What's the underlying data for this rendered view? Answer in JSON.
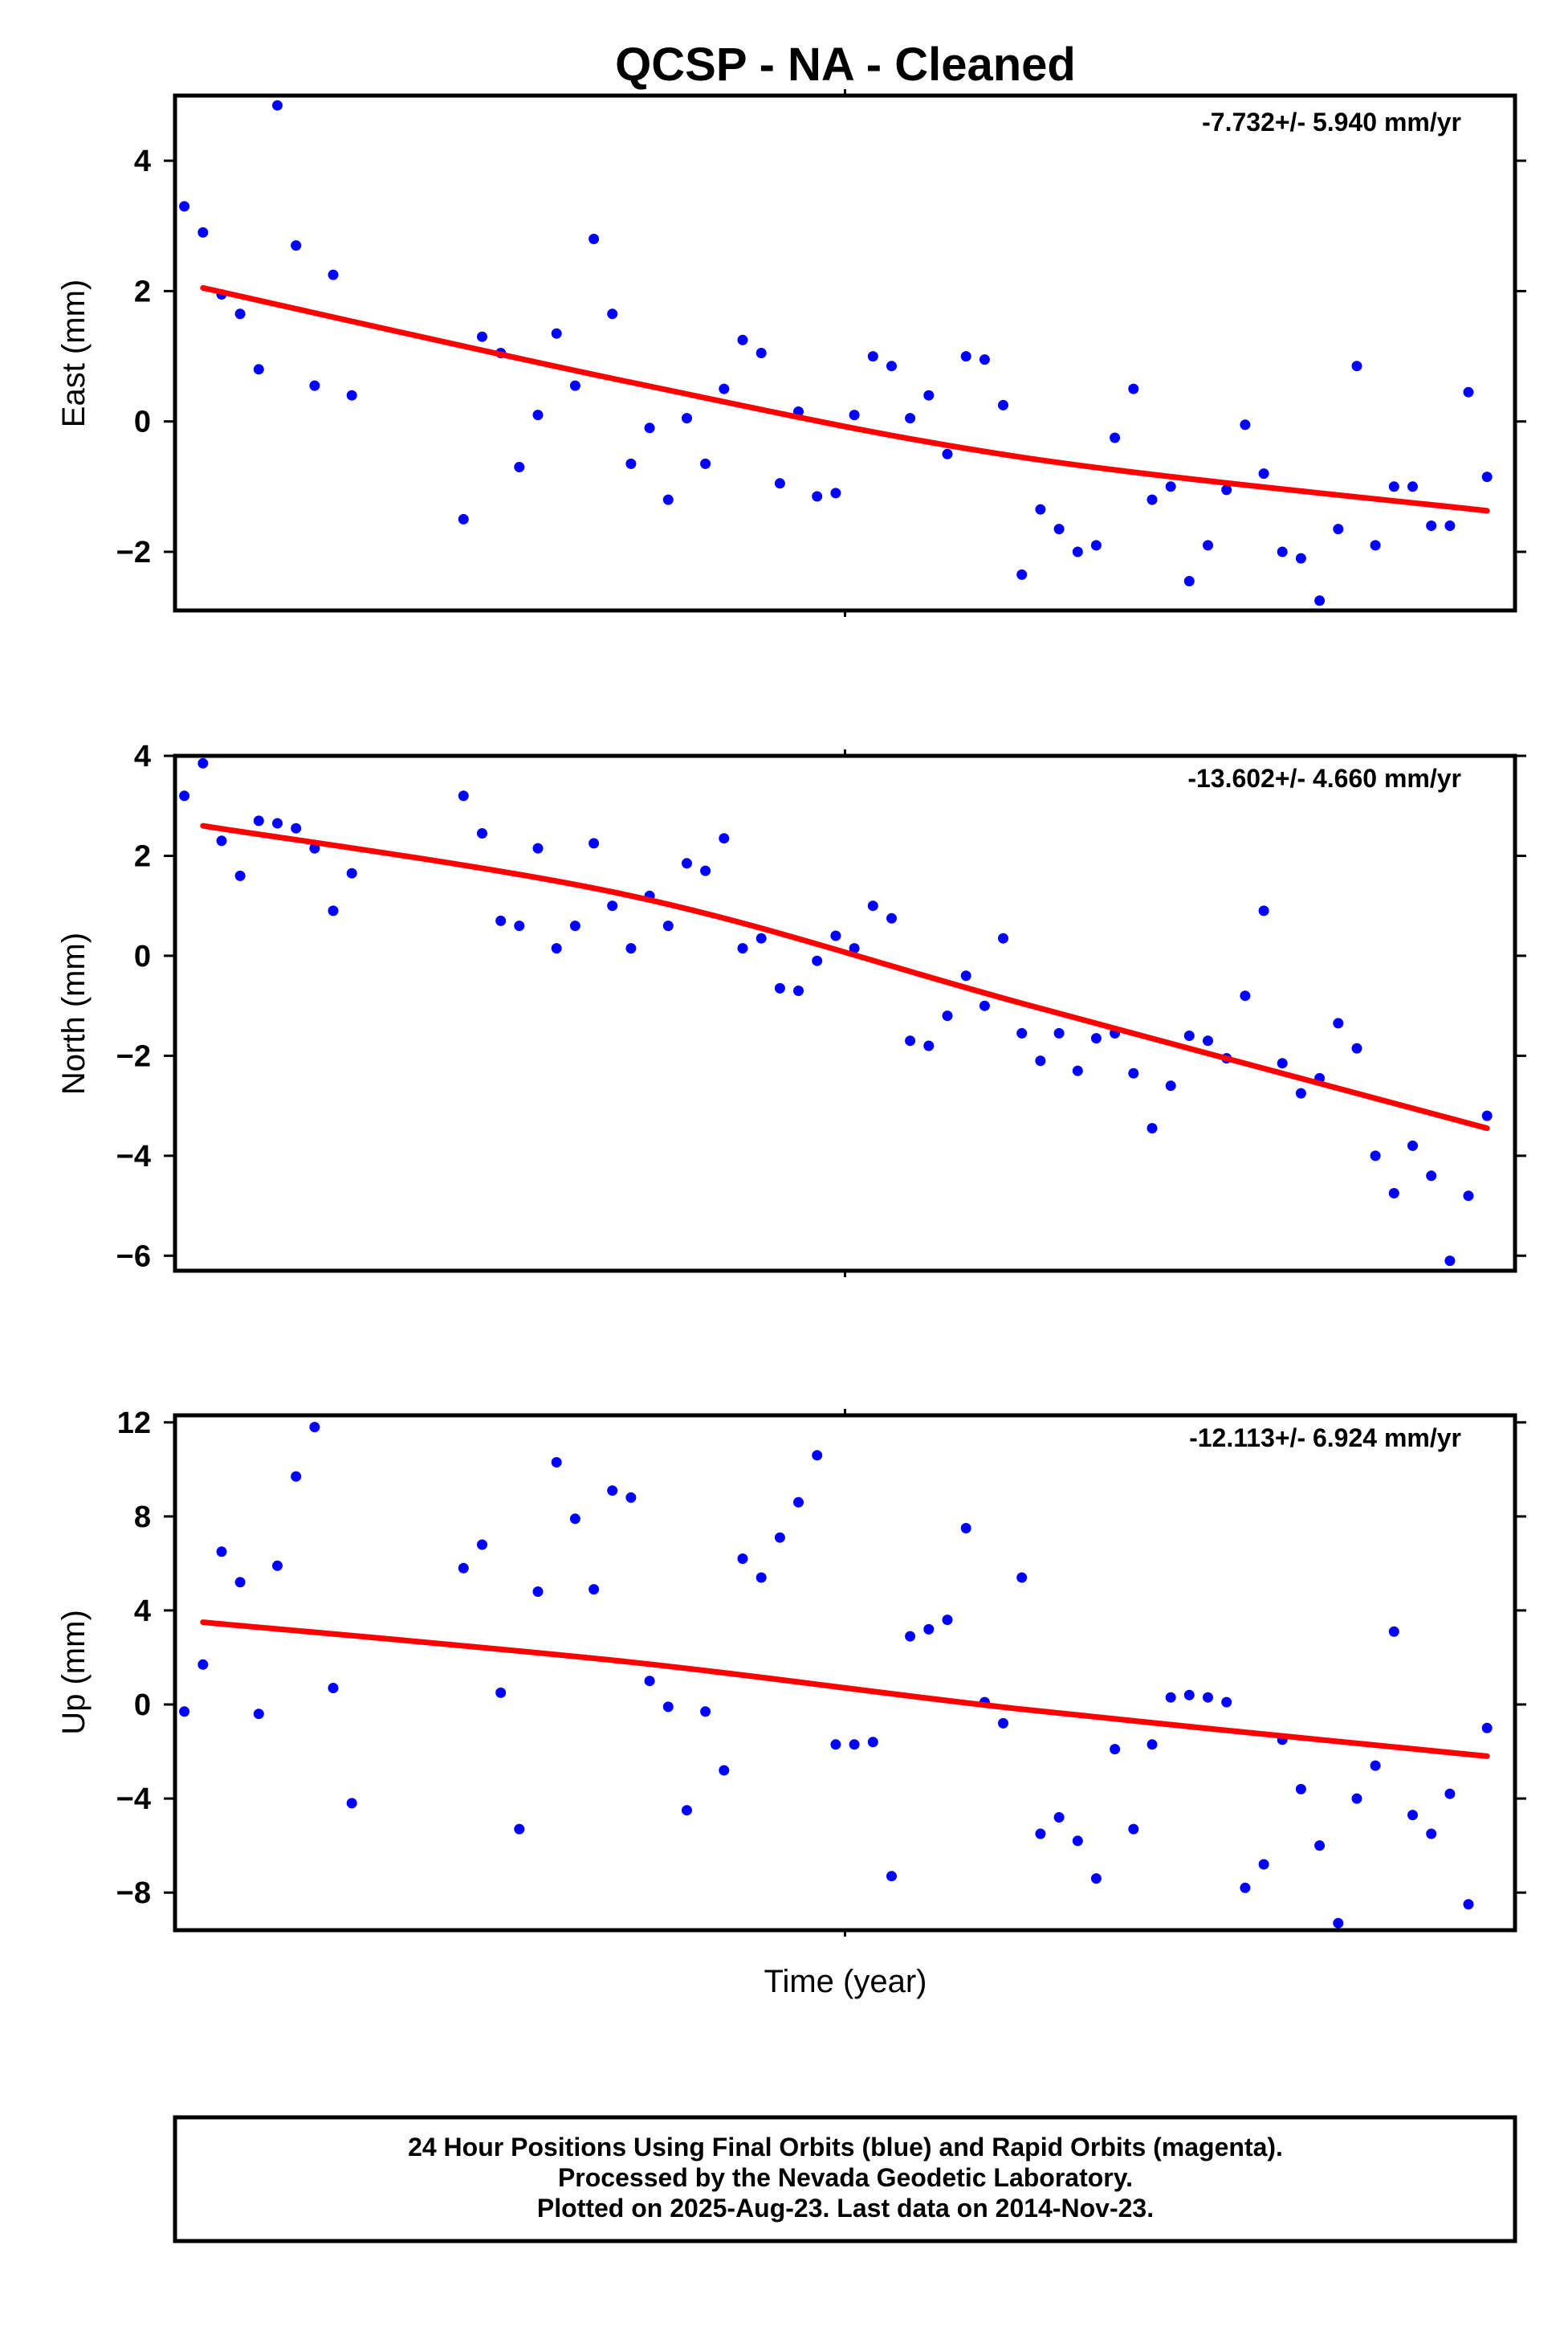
{
  "title": "QCSP  - NA - Cleaned",
  "footer": {
    "line1": "24 Hour Positions Using Final Orbits (blue) and Rapid Orbits (magenta).",
    "line2": "Processed by the Nevada Geodetic Laboratory.",
    "line3": "Plotted on 2025-Aug-23. Last data on 2014-Nov-23."
  },
  "colors": {
    "points": "#0000ff",
    "fit": "#ff0000",
    "frame": "#000000"
  },
  "chart_data": [
    {
      "type": "scatter",
      "ylabel": "East (mm)",
      "xlabel": "",
      "rate_label": "-7.732+/- 5.940 mm/yr",
      "ylim": [
        -2.9,
        5.0
      ],
      "yticks": [
        -2,
        0,
        2,
        4
      ],
      "xlim": [
        0,
        72
      ],
      "series": [
        {
          "values": [
            [
              0.5,
              3.3
            ],
            [
              1.5,
              2.9
            ],
            [
              2.5,
              1.95
            ],
            [
              3.5,
              1.65
            ],
            [
              4.5,
              0.8
            ],
            [
              5.5,
              4.85
            ],
            [
              6.5,
              2.7
            ],
            [
              7.5,
              0.55
            ],
            [
              8.5,
              2.25
            ],
            [
              9.5,
              0.4
            ],
            [
              15.5,
              -1.5
            ],
            [
              16.5,
              1.3
            ],
            [
              17.5,
              1.05
            ],
            [
              18.5,
              -0.7
            ],
            [
              19.5,
              0.1
            ],
            [
              20.5,
              1.35
            ],
            [
              21.5,
              0.55
            ],
            [
              22.5,
              2.8
            ],
            [
              23.5,
              1.65
            ],
            [
              24.5,
              -0.65
            ],
            [
              25.5,
              -0.1
            ],
            [
              26.5,
              -1.2
            ],
            [
              27.5,
              0.05
            ],
            [
              28.5,
              -0.65
            ],
            [
              29.5,
              0.5
            ],
            [
              30.5,
              1.25
            ],
            [
              31.5,
              1.05
            ],
            [
              32.5,
              -0.95
            ],
            [
              33.5,
              0.15
            ],
            [
              34.5,
              -1.15
            ],
            [
              35.5,
              -1.1
            ],
            [
              36.5,
              0.1
            ],
            [
              37.5,
              1.0
            ],
            [
              38.5,
              0.85
            ],
            [
              39.5,
              0.05
            ],
            [
              40.5,
              0.4
            ],
            [
              41.5,
              -0.5
            ],
            [
              42.5,
              1.0
            ],
            [
              43.5,
              0.95
            ],
            [
              44.5,
              0.25
            ],
            [
              45.5,
              -2.35
            ],
            [
              46.5,
              -1.35
            ],
            [
              47.5,
              -1.65
            ],
            [
              48.5,
              -2.0
            ],
            [
              49.5,
              -1.9
            ],
            [
              50.5,
              -0.25
            ],
            [
              51.5,
              0.5
            ],
            [
              52.5,
              -1.2
            ],
            [
              53.5,
              -1.0
            ],
            [
              54.5,
              -2.45
            ],
            [
              55.5,
              -1.9
            ],
            [
              56.5,
              -1.05
            ],
            [
              57.5,
              -0.05
            ],
            [
              58.5,
              -0.8
            ],
            [
              59.5,
              -2.0
            ],
            [
              60.5,
              -2.1
            ],
            [
              61.5,
              -2.75
            ],
            [
              62.5,
              -1.65
            ],
            [
              63.5,
              0.85
            ],
            [
              64.5,
              -1.9
            ],
            [
              65.5,
              -1.0
            ],
            [
              66.5,
              -1.0
            ],
            [
              67.5,
              -1.6
            ],
            [
              68.5,
              -1.6
            ],
            [
              69.5,
              0.45
            ],
            [
              70.5,
              -0.85
            ]
          ]
        }
      ],
      "fit": [
        [
          1.5,
          2.05
        ],
        [
          24.5,
          0.6
        ],
        [
          45.5,
          -0.55
        ],
        [
          70.5,
          -1.37
        ]
      ]
    },
    {
      "type": "scatter",
      "ylabel": "North (mm)",
      "xlabel": "",
      "rate_label": "-13.602+/- 4.660 mm/yr",
      "ylim": [
        -6.3,
        4.0
      ],
      "yticks": [
        -6,
        -4,
        -2,
        0,
        2,
        4
      ],
      "xlim": [
        0,
        72
      ],
      "series": [
        {
          "values": [
            [
              0.5,
              3.2
            ],
            [
              1.5,
              3.85
            ],
            [
              2.5,
              2.3
            ],
            [
              3.5,
              1.6
            ],
            [
              4.5,
              2.7
            ],
            [
              5.5,
              2.65
            ],
            [
              6.5,
              2.55
            ],
            [
              7.5,
              2.15
            ],
            [
              8.5,
              0.9
            ],
            [
              9.5,
              1.65
            ],
            [
              15.5,
              3.2
            ],
            [
              16.5,
              2.45
            ],
            [
              17.5,
              0.7
            ],
            [
              18.5,
              0.6
            ],
            [
              19.5,
              2.15
            ],
            [
              20.5,
              0.15
            ],
            [
              21.5,
              0.6
            ],
            [
              22.5,
              2.25
            ],
            [
              23.5,
              1.0
            ],
            [
              24.5,
              0.15
            ],
            [
              25.5,
              1.2
            ],
            [
              26.5,
              0.6
            ],
            [
              27.5,
              1.85
            ],
            [
              28.5,
              1.7
            ],
            [
              29.5,
              2.35
            ],
            [
              30.5,
              0.15
            ],
            [
              31.5,
              0.35
            ],
            [
              32.5,
              -0.65
            ],
            [
              33.5,
              -0.7
            ],
            [
              34.5,
              -0.1
            ],
            [
              35.5,
              0.4
            ],
            [
              36.5,
              0.15
            ],
            [
              37.5,
              1.0
            ],
            [
              38.5,
              0.75
            ],
            [
              39.5,
              -1.7
            ],
            [
              40.5,
              -1.8
            ],
            [
              41.5,
              -1.2
            ],
            [
              42.5,
              -0.4
            ],
            [
              43.5,
              -1.0
            ],
            [
              44.5,
              0.35
            ],
            [
              45.5,
              -1.55
            ],
            [
              46.5,
              -2.1
            ],
            [
              47.5,
              -1.55
            ],
            [
              48.5,
              -2.3
            ],
            [
              49.5,
              -1.65
            ],
            [
              50.5,
              -1.55
            ],
            [
              51.5,
              -2.35
            ],
            [
              52.5,
              -3.45
            ],
            [
              53.5,
              -2.6
            ],
            [
              54.5,
              -1.6
            ],
            [
              55.5,
              -1.7
            ],
            [
              56.5,
              -2.05
            ],
            [
              57.5,
              -0.8
            ],
            [
              58.5,
              0.9
            ],
            [
              59.5,
              -2.15
            ],
            [
              60.5,
              -2.75
            ],
            [
              61.5,
              -2.45
            ],
            [
              62.5,
              -1.35
            ],
            [
              63.5,
              -1.85
            ],
            [
              64.5,
              -4.0
            ],
            [
              65.5,
              -4.75
            ],
            [
              66.5,
              -3.8
            ],
            [
              67.5,
              -4.4
            ],
            [
              68.5,
              -6.1
            ],
            [
              69.5,
              -4.8
            ],
            [
              70.5,
              -3.2
            ]
          ]
        }
      ],
      "fit": [
        [
          1.5,
          2.6
        ],
        [
          24.5,
          1.2
        ],
        [
          45.5,
          -0.95
        ],
        [
          70.5,
          -3.45
        ]
      ]
    },
    {
      "type": "scatter",
      "ylabel": "Up (mm)",
      "xlabel": "Time (year)",
      "rate_label": "-12.113+/- 6.924 mm/yr",
      "ylim": [
        -9.6,
        12.3
      ],
      "yticks": [
        -8,
        -4,
        0,
        4,
        8,
        12
      ],
      "xlim": [
        0,
        72
      ],
      "series": [
        {
          "values": [
            [
              0.5,
              -0.3
            ],
            [
              1.5,
              1.7
            ],
            [
              2.5,
              6.5
            ],
            [
              3.5,
              5.2
            ],
            [
              4.5,
              -0.4
            ],
            [
              5.5,
              5.9
            ],
            [
              6.5,
              9.7
            ],
            [
              7.5,
              11.8
            ],
            [
              8.5,
              0.7
            ],
            [
              9.5,
              -4.2
            ],
            [
              15.5,
              5.8
            ],
            [
              16.5,
              6.8
            ],
            [
              17.5,
              0.5
            ],
            [
              18.5,
              -5.3
            ],
            [
              19.5,
              4.8
            ],
            [
              20.5,
              10.3
            ],
            [
              21.5,
              7.9
            ],
            [
              22.5,
              4.9
            ],
            [
              23.5,
              9.1
            ],
            [
              24.5,
              8.8
            ],
            [
              25.5,
              1.0
            ],
            [
              26.5,
              -0.1
            ],
            [
              27.5,
              -4.5
            ],
            [
              28.5,
              -0.3
            ],
            [
              29.5,
              -2.8
            ],
            [
              30.5,
              6.2
            ],
            [
              31.5,
              5.4
            ],
            [
              32.5,
              7.1
            ],
            [
              33.5,
              8.6
            ],
            [
              34.5,
              10.6
            ],
            [
              35.5,
              -1.7
            ],
            [
              36.5,
              -1.7
            ],
            [
              37.5,
              -1.6
            ],
            [
              38.5,
              -7.3
            ],
            [
              39.5,
              2.9
            ],
            [
              40.5,
              3.2
            ],
            [
              41.5,
              3.6
            ],
            [
              42.5,
              7.5
            ],
            [
              43.5,
              0.1
            ],
            [
              44.5,
              -0.8
            ],
            [
              45.5,
              5.4
            ],
            [
              46.5,
              -5.5
            ],
            [
              47.5,
              -4.8
            ],
            [
              48.5,
              -5.8
            ],
            [
              49.5,
              -7.4
            ],
            [
              50.5,
              -1.9
            ],
            [
              51.5,
              -5.3
            ],
            [
              52.5,
              -1.7
            ],
            [
              53.5,
              0.3
            ],
            [
              54.5,
              0.4
            ],
            [
              55.5,
              0.3
            ],
            [
              56.5,
              0.1
            ],
            [
              57.5,
              -7.8
            ],
            [
              58.5,
              -6.8
            ],
            [
              59.5,
              -1.5
            ],
            [
              60.5,
              -3.6
            ],
            [
              61.5,
              -6.0
            ],
            [
              62.5,
              -9.3
            ],
            [
              63.5,
              -4.0
            ],
            [
              64.5,
              -2.6
            ],
            [
              65.5,
              3.1
            ],
            [
              66.5,
              -4.7
            ],
            [
              67.5,
              -5.5
            ],
            [
              68.5,
              -3.8
            ],
            [
              69.5,
              -8.5
            ],
            [
              70.5,
              -1.0
            ]
          ]
        }
      ],
      "fit": [
        [
          1.5,
          3.5
        ],
        [
          24.5,
          1.8
        ],
        [
          45.5,
          -0.2
        ],
        [
          70.5,
          -2.2
        ]
      ]
    }
  ]
}
